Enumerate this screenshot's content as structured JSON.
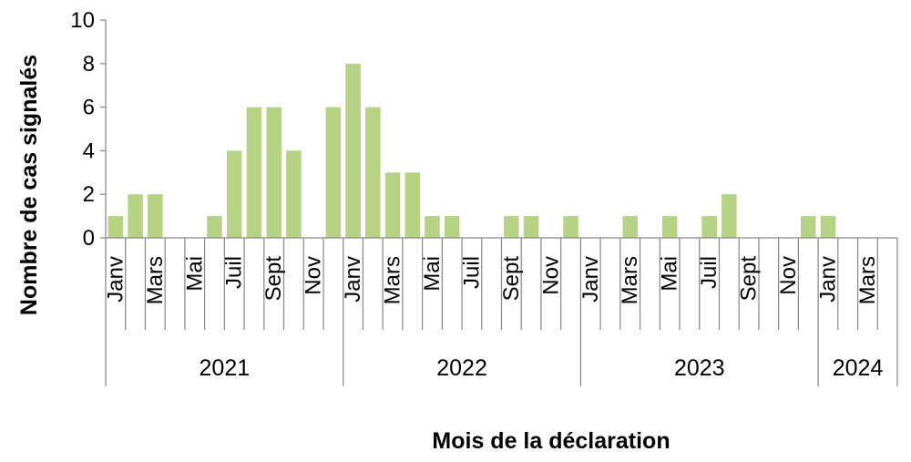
{
  "chart_data": {
    "type": "bar",
    "xlabel": "Mois de la déclaration",
    "ylabel": "Nombre de cas signalés",
    "ylim": [
      0,
      10
    ],
    "yticks": [
      0,
      2,
      4,
      6,
      8,
      10
    ],
    "grid": false,
    "legend": "none",
    "bar_color": "#b5d383",
    "categories": [
      "2021-01",
      "2021-02",
      "2021-03",
      "2021-04",
      "2021-05",
      "2021-06",
      "2021-07",
      "2021-08",
      "2021-09",
      "2021-10",
      "2021-11",
      "2021-12",
      "2022-01",
      "2022-02",
      "2022-03",
      "2022-04",
      "2022-05",
      "2022-06",
      "2022-07",
      "2022-08",
      "2022-09",
      "2022-10",
      "2022-11",
      "2022-12",
      "2023-01",
      "2023-02",
      "2023-03",
      "2023-04",
      "2023-05",
      "2023-06",
      "2023-07",
      "2023-08",
      "2023-09",
      "2023-10",
      "2023-11",
      "2023-12",
      "2024-01",
      "2024-02",
      "2024-03",
      "2024-04"
    ],
    "values": [
      1,
      2,
      2,
      0,
      0,
      1,
      4,
      6,
      6,
      4,
      0,
      6,
      8,
      6,
      3,
      3,
      1,
      1,
      0,
      0,
      1,
      1,
      0,
      1,
      0,
      0,
      1,
      0,
      1,
      0,
      1,
      2,
      0,
      0,
      0,
      1,
      1,
      0,
      0,
      0
    ],
    "month_labels": [
      "Janv",
      "",
      "Mars",
      "",
      "Mai",
      "",
      "Juil",
      "",
      "Sept",
      "",
      "Nov",
      "",
      "Janv",
      "",
      "Mars",
      "",
      "Mai",
      "",
      "Juil",
      "",
      "Sept",
      "",
      "Nov",
      "",
      "Janv",
      "",
      "Mars",
      "",
      "Mai",
      "",
      "Juil",
      "",
      "Sept",
      "",
      "Nov",
      "",
      "Janv",
      "",
      "Mars",
      ""
    ],
    "year_groups": [
      {
        "label": "2021",
        "months": 12
      },
      {
        "label": "2022",
        "months": 12
      },
      {
        "label": "2023",
        "months": 12
      },
      {
        "label": "2024",
        "months": 4
      }
    ]
  }
}
